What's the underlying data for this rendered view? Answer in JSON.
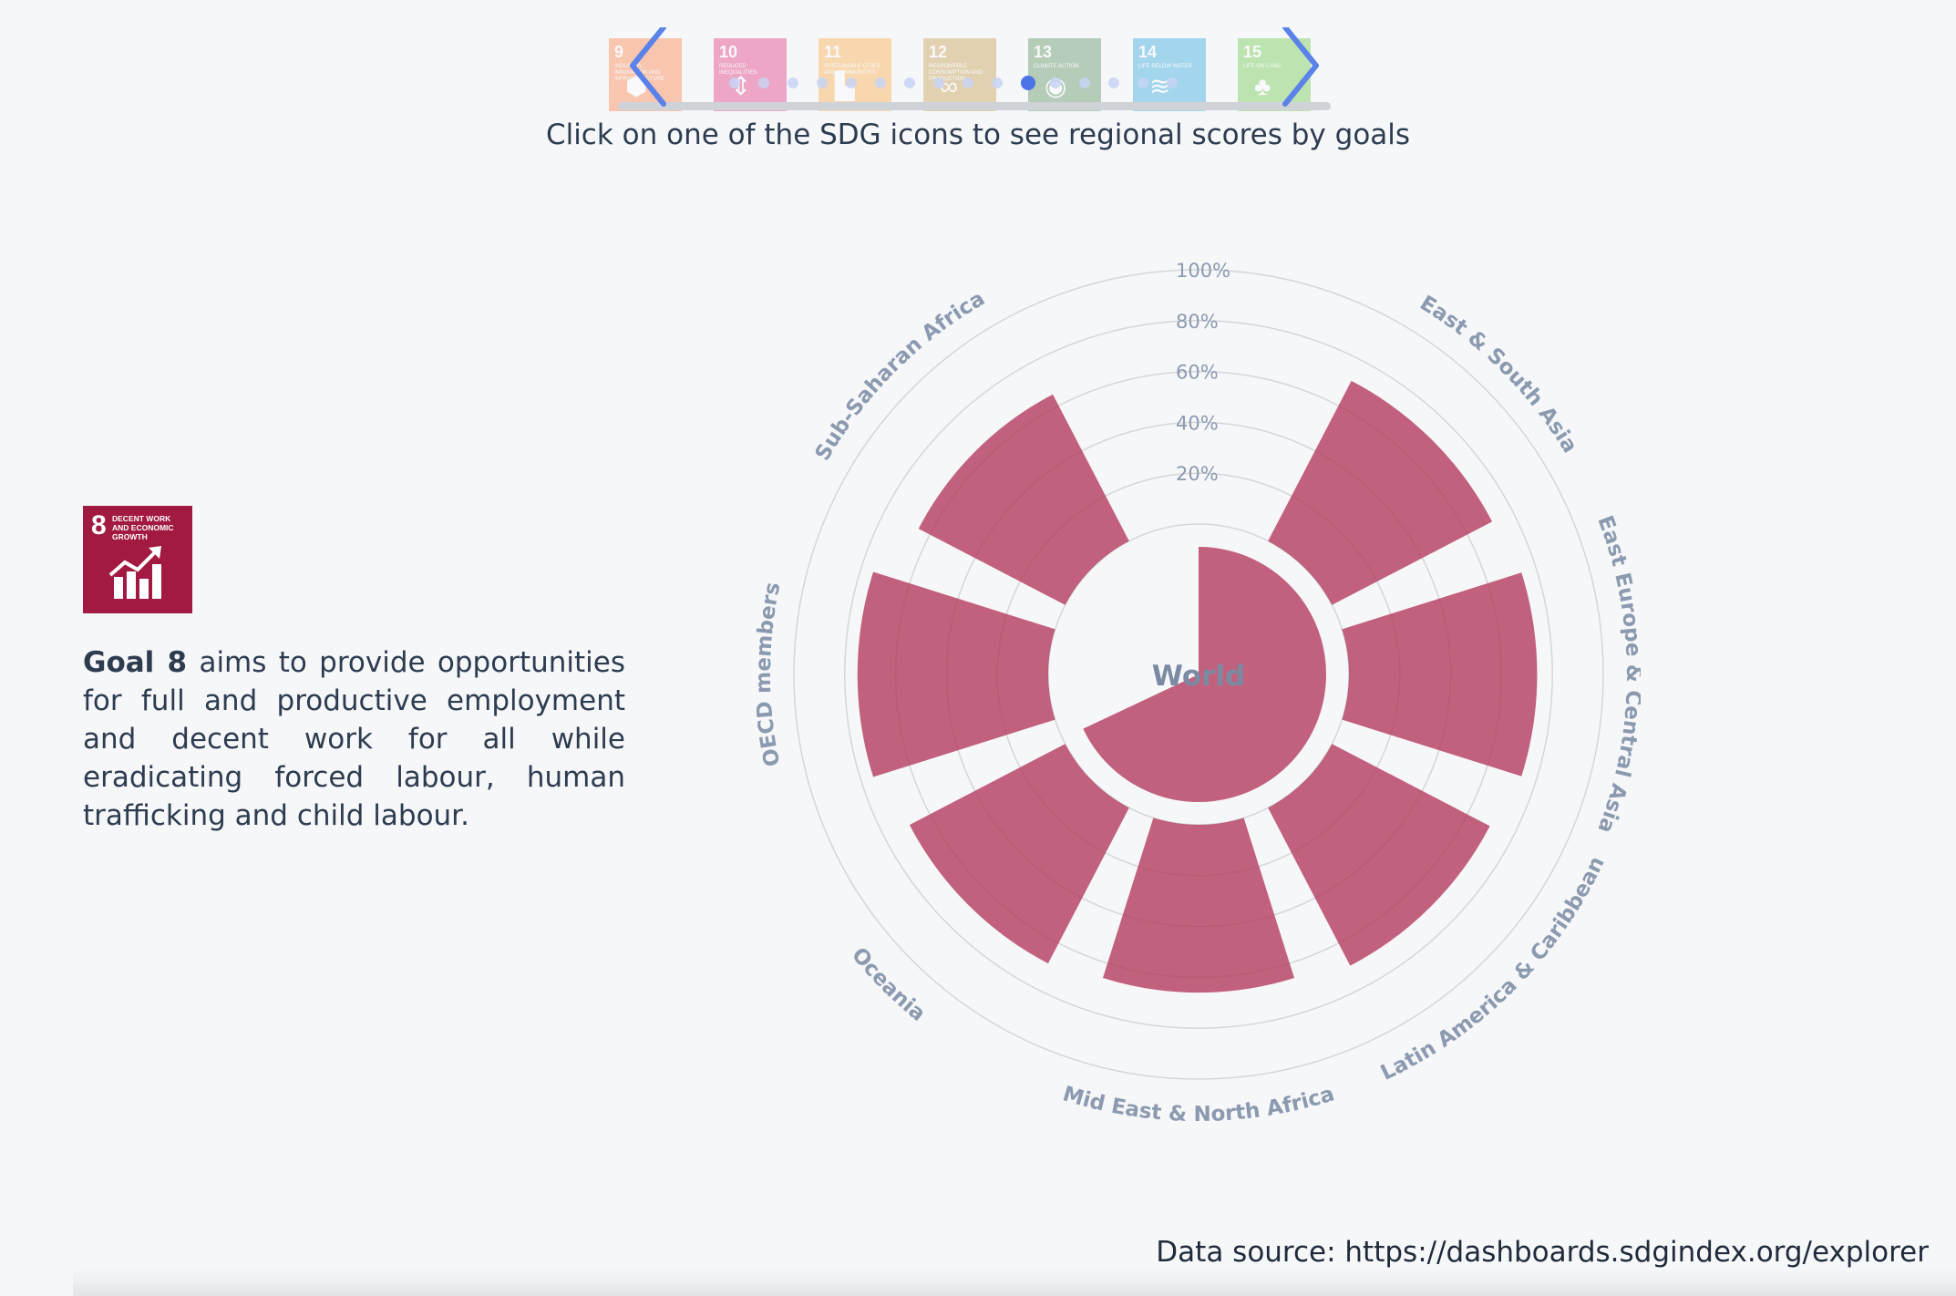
{
  "carousel": {
    "tiles": [
      {
        "num": "9",
        "title": "Industry, innovation and infrastructure",
        "color": "#fd6925",
        "glyph": "⬢"
      },
      {
        "num": "10",
        "title": "Reduced inequalities",
        "color": "#dd1367",
        "glyph": "⇕"
      },
      {
        "num": "11",
        "title": "Sustainable cities and communities",
        "color": "#fd9d24",
        "glyph": "▙"
      },
      {
        "num": "12",
        "title": "Responsible consumption and production",
        "color": "#bf8b2e",
        "glyph": "∞"
      },
      {
        "num": "13",
        "title": "Climate action",
        "color": "#3f7e44",
        "glyph": "◉"
      },
      {
        "num": "14",
        "title": "Life below water",
        "color": "#0a97d9",
        "glyph": "≋"
      },
      {
        "num": "15",
        "title": "Life on land",
        "color": "#56c02b",
        "glyph": "♣"
      }
    ],
    "dot_count": 16,
    "active_dot": 10
  },
  "instruction": "Click on one of the SDG icons to see regional scores by goals",
  "goal": {
    "num": "8",
    "title": "Decent work and economic growth",
    "color": "#a21942",
    "bold": "Goal 8",
    "text": " aims to provide opportunities for full and productive employment and decent work for all while eradicating forced labour, human trafficking and child labour."
  },
  "chart_data": {
    "type": "polar-bar",
    "unit": "%",
    "rlim": [
      0,
      100
    ],
    "ticks": [
      "20%",
      "40%",
      "60%",
      "80%",
      "100%"
    ],
    "bar_color": "#b3375a",
    "center": {
      "label": "World",
      "value": 68
    },
    "categories": [
      "East & South Asia",
      "East Europe & Central Asia",
      "Latin America & Caribbean",
      "Mid East & North Africa",
      "Oceania",
      "OECD members",
      "Sub-Saharan Africa"
    ],
    "values": [
      71,
      74,
      70,
      66,
      69,
      75,
      65
    ]
  },
  "source": "Data source: https://dashboards.sdgindex.org/explorer"
}
